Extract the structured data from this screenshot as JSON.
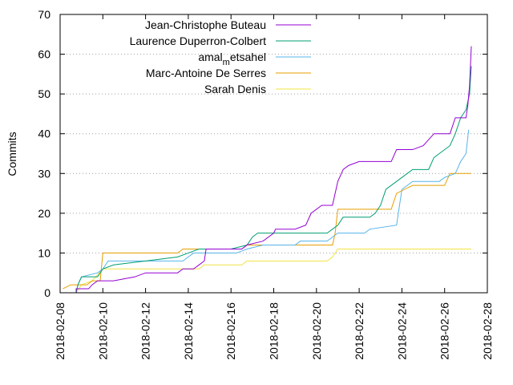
{
  "chart_data": {
    "type": "line",
    "ylabel": "Commits",
    "xlabel": "",
    "ylim": [
      0,
      70
    ],
    "yticks": [
      0,
      10,
      20,
      30,
      40,
      50,
      60,
      70
    ],
    "xlim": [
      "2018-02-08",
      "2018-02-28"
    ],
    "xticks": [
      "2018-02-08",
      "2018-02-10",
      "2018-02-12",
      "2018-02-14",
      "2018-02-16",
      "2018-02-18",
      "2018-02-20",
      "2018-02-22",
      "2018-02-24",
      "2018-02-26",
      "2018-02-28"
    ],
    "grid": "dotted-horizontal",
    "legend_position": "top-left",
    "series": [
      {
        "name": "Jean-Christophe Buteau",
        "color": "#9400d3",
        "points": [
          [
            "2018-02-08 18:00",
            0
          ],
          [
            "2018-02-08 18:00",
            1
          ],
          [
            "2018-02-09 08:00",
            1
          ],
          [
            "2018-02-09 12:00",
            2
          ],
          [
            "2018-02-09 18:00",
            3
          ],
          [
            "2018-02-10 12:00",
            3
          ],
          [
            "2018-02-11 12:00",
            4
          ],
          [
            "2018-02-12 00:00",
            5
          ],
          [
            "2018-02-13 12:00",
            5
          ],
          [
            "2018-02-13 18:00",
            6
          ],
          [
            "2018-02-14 06:00",
            6
          ],
          [
            "2018-02-14 12:00",
            7
          ],
          [
            "2018-02-14 18:00",
            8
          ],
          [
            "2018-02-14 20:00",
            11
          ],
          [
            "2018-02-16 12:00",
            11
          ],
          [
            "2018-02-16 18:00",
            12
          ],
          [
            "2018-02-17 12:00",
            13
          ],
          [
            "2018-02-18 00:00",
            15
          ],
          [
            "2018-02-18 02:00",
            16
          ],
          [
            "2018-02-19 00:00",
            16
          ],
          [
            "2018-02-19 12:00",
            17
          ],
          [
            "2018-02-19 18:00",
            20
          ],
          [
            "2018-02-20 06:00",
            22
          ],
          [
            "2018-02-20 18:00",
            22
          ],
          [
            "2018-02-21 00:00",
            28
          ],
          [
            "2018-02-21 06:00",
            31
          ],
          [
            "2018-02-21 12:00",
            32
          ],
          [
            "2018-02-22 00:00",
            33
          ],
          [
            "2018-02-23 12:00",
            33
          ],
          [
            "2018-02-23 18:00",
            36
          ],
          [
            "2018-02-24 12:00",
            36
          ],
          [
            "2018-02-25 00:00",
            37
          ],
          [
            "2018-02-25 12:00",
            40
          ],
          [
            "2018-02-26 06:00",
            40
          ],
          [
            "2018-02-26 12:00",
            44
          ],
          [
            "2018-02-27 00:00",
            44
          ],
          [
            "2018-02-27 02:00",
            47
          ],
          [
            "2018-02-27 04:00",
            52
          ],
          [
            "2018-02-27 06:00",
            62
          ]
        ]
      },
      {
        "name": "Laurence Duperron-Colbert",
        "color": "#009e73",
        "points": [
          [
            "2018-02-08 18:00",
            0
          ],
          [
            "2018-02-08 20:00",
            2
          ],
          [
            "2018-02-09 00:00",
            4
          ],
          [
            "2018-02-09 18:00",
            4
          ],
          [
            "2018-02-10 00:00",
            6
          ],
          [
            "2018-02-10 12:00",
            7
          ],
          [
            "2018-02-12 00:00",
            8
          ],
          [
            "2018-02-13 12:00",
            9
          ],
          [
            "2018-02-14 00:00",
            10
          ],
          [
            "2018-02-14 12:00",
            11
          ],
          [
            "2018-02-16 00:00",
            11
          ],
          [
            "2018-02-16 18:00",
            12
          ],
          [
            "2018-02-17 00:00",
            14
          ],
          [
            "2018-02-17 06:00",
            15
          ],
          [
            "2018-02-20 12:00",
            15
          ],
          [
            "2018-02-20 18:00",
            16
          ],
          [
            "2018-02-21 00:00",
            17
          ],
          [
            "2018-02-21 06:00",
            19
          ],
          [
            "2018-02-22 12:00",
            19
          ],
          [
            "2018-02-22 18:00",
            20
          ],
          [
            "2018-02-23 00:00",
            22
          ],
          [
            "2018-02-23 06:00",
            26
          ],
          [
            "2018-02-23 18:00",
            28
          ],
          [
            "2018-02-24 06:00",
            30
          ],
          [
            "2018-02-24 12:00",
            31
          ],
          [
            "2018-02-25 06:00",
            31
          ],
          [
            "2018-02-25 12:00",
            34
          ],
          [
            "2018-02-25 18:00",
            35
          ],
          [
            "2018-02-26 06:00",
            37
          ],
          [
            "2018-02-26 12:00",
            40
          ],
          [
            "2018-02-26 18:00",
            44
          ],
          [
            "2018-02-27 00:00",
            46
          ],
          [
            "2018-02-27 04:00",
            50
          ],
          [
            "2018-02-27 06:00",
            57
          ]
        ]
      },
      {
        "name": "amal_m etsahel",
        "color": "#56b4e9",
        "points": [
          [
            "2018-02-08 18:00",
            0
          ],
          [
            "2018-02-08 20:00",
            2
          ],
          [
            "2018-02-09 00:00",
            4
          ],
          [
            "2018-02-09 18:00",
            5
          ],
          [
            "2018-02-10 00:00",
            6
          ],
          [
            "2018-02-10 06:00",
            8
          ],
          [
            "2018-02-13 18:00",
            8
          ],
          [
            "2018-02-14 00:00",
            9
          ],
          [
            "2018-02-14 06:00",
            10
          ],
          [
            "2018-02-16 06:00",
            10
          ],
          [
            "2018-02-16 18:00",
            11
          ],
          [
            "2018-02-17 12:00",
            12
          ],
          [
            "2018-02-19 00:00",
            12
          ],
          [
            "2018-02-19 06:00",
            13
          ],
          [
            "2018-02-20 12:00",
            13
          ],
          [
            "2018-02-20 18:00",
            14
          ],
          [
            "2018-02-21 00:00",
            15
          ],
          [
            "2018-02-22 06:00",
            15
          ],
          [
            "2018-02-22 12:00",
            16
          ],
          [
            "2018-02-23 18:00",
            17
          ],
          [
            "2018-02-24 00:00",
            26
          ],
          [
            "2018-02-24 12:00",
            28
          ],
          [
            "2018-02-25 18:00",
            28
          ],
          [
            "2018-02-26 00:00",
            29
          ],
          [
            "2018-02-26 12:00",
            30
          ],
          [
            "2018-02-26 18:00",
            33
          ],
          [
            "2018-02-27 00:00",
            35
          ],
          [
            "2018-02-27 03:00",
            41
          ]
        ]
      },
      {
        "name": "Marc-Antoine De Serres",
        "color": "#e69f00",
        "points": [
          [
            "2018-02-08 03:00",
            1
          ],
          [
            "2018-02-08 12:00",
            2
          ],
          [
            "2018-02-09 06:00",
            2
          ],
          [
            "2018-02-09 12:00",
            3
          ],
          [
            "2018-02-09 21:00",
            3
          ],
          [
            "2018-02-10 00:00",
            10
          ],
          [
            "2018-02-13 12:00",
            10
          ],
          [
            "2018-02-13 18:00",
            11
          ],
          [
            "2018-02-16 12:00",
            11
          ],
          [
            "2018-02-16 18:00",
            12
          ],
          [
            "2018-02-20 18:00",
            12
          ],
          [
            "2018-02-20 21:00",
            15
          ],
          [
            "2018-02-21 00:00",
            21
          ],
          [
            "2018-02-23 12:00",
            21
          ],
          [
            "2018-02-23 18:00",
            25
          ],
          [
            "2018-02-24 12:00",
            27
          ],
          [
            "2018-02-26 00:00",
            27
          ],
          [
            "2018-02-26 06:00",
            30
          ],
          [
            "2018-02-27 06:00",
            30
          ]
        ]
      },
      {
        "name": "Sarah Denis",
        "color": "#f0e442",
        "points": [
          [
            "2018-02-08 18:00",
            0
          ],
          [
            "2018-02-09 00:00",
            2
          ],
          [
            "2018-02-09 12:00",
            3
          ],
          [
            "2018-02-10 00:00",
            6
          ],
          [
            "2018-02-14 12:00",
            6
          ],
          [
            "2018-02-14 18:00",
            7
          ],
          [
            "2018-02-16 12:00",
            7
          ],
          [
            "2018-02-16 18:00",
            8
          ],
          [
            "2018-02-20 12:00",
            8
          ],
          [
            "2018-02-20 18:00",
            9
          ],
          [
            "2018-02-21 00:00",
            11
          ],
          [
            "2018-02-27 06:00",
            11
          ]
        ]
      }
    ]
  }
}
